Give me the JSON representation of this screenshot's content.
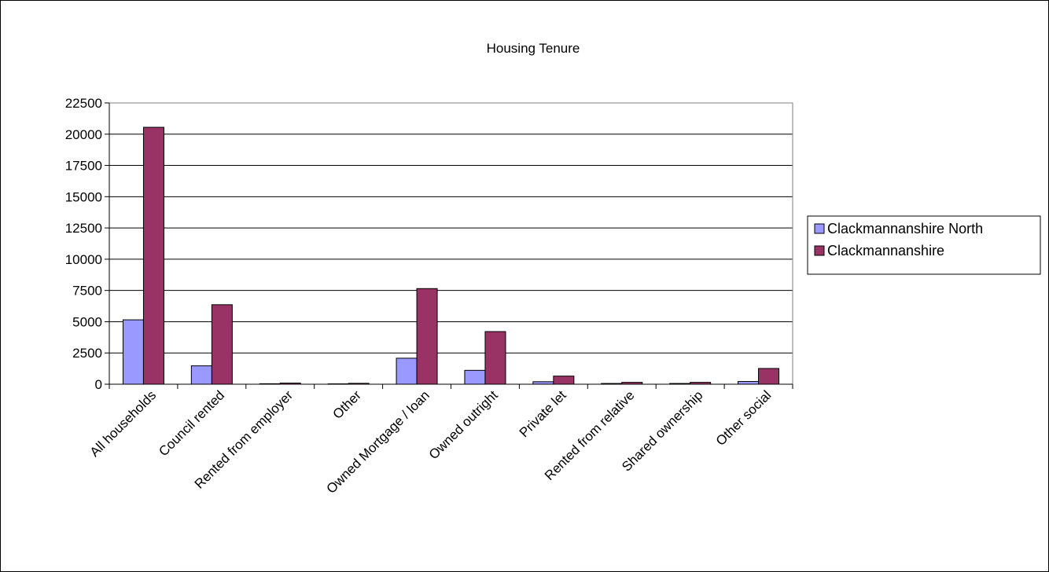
{
  "chart_data": {
    "type": "bar",
    "title": "Housing Tenure",
    "xlabel": "",
    "ylabel": "",
    "ylim": [
      0,
      22500
    ],
    "yticks": [
      0,
      2500,
      5000,
      7500,
      10000,
      12500,
      15000,
      17500,
      20000,
      22500
    ],
    "grid": true,
    "legend_position": "right",
    "categories": [
      "All households",
      "Council rented",
      "Rented from employer",
      "Other",
      "Owned Mortgage / loan",
      "Owned outright",
      "Private let",
      "Rented from relative",
      "Shared ownership",
      "Other social"
    ],
    "series": [
      {
        "name": "Clackmannanshire North",
        "color": "#9999ff",
        "values": [
          5150,
          1470,
          40,
          30,
          2080,
          1110,
          200,
          60,
          60,
          220
        ]
      },
      {
        "name": "Clackmannanshire",
        "color": "#993366",
        "values": [
          20550,
          6360,
          90,
          70,
          7650,
          4210,
          650,
          150,
          150,
          1260
        ]
      }
    ]
  }
}
